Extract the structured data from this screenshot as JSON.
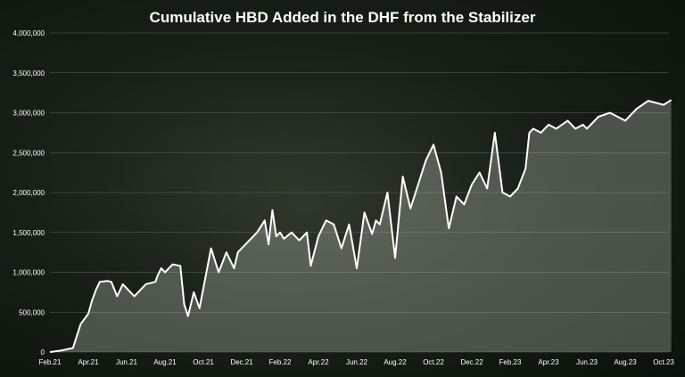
{
  "chart_data": {
    "type": "area",
    "title": "Cumulative HBD Added in the DHF from the Stabilizer",
    "xlabel": "",
    "ylabel": "",
    "ylim": [
      0,
      4000000
    ],
    "yticks": [
      0,
      500000,
      1000000,
      1500000,
      2000000,
      2500000,
      3000000,
      3500000,
      4000000
    ],
    "ytick_labels": [
      "0",
      "500,000",
      "1,000,000",
      "1,500,000",
      "2,000,000",
      "2,500,000",
      "3,000,000",
      "3,500,000",
      "4,000,000"
    ],
    "xtick_labels": [
      "Feb.21",
      "Apr.21",
      "Jun.21",
      "Aug.21",
      "Oct.21",
      "Dec.21",
      "Feb.22",
      "Apr.22",
      "Jun.22",
      "Aug.22",
      "Oct.22",
      "Dec.22",
      "Feb.23",
      "Apr.23",
      "Jun.23",
      "Aug.23",
      "Oct.23"
    ],
    "grid": true,
    "colors": {
      "line": "#ffffff",
      "fill": "#dfe6da",
      "grid": "#5c665a"
    },
    "series": [
      {
        "x": [
          0,
          0.3,
          0.6,
          0.8,
          1.0,
          1.1,
          1.2,
          1.3,
          1.5,
          1.6,
          1.75,
          1.9,
          2.2,
          2.5,
          2.75,
          2.8,
          2.9,
          3.0,
          3.2,
          3.4,
          3.5,
          3.6,
          3.75,
          3.9,
          4.0,
          4.2,
          4.4,
          4.6,
          4.8,
          4.9,
          5.0,
          5.2,
          5.4,
          5.6,
          5.7,
          5.8,
          5.9,
          6.0,
          6.1,
          6.3,
          6.5,
          6.7,
          6.8,
          7.0,
          7.2,
          7.4,
          7.6,
          7.8,
          8.0,
          8.2,
          8.4,
          8.5,
          8.6,
          8.8,
          9.0,
          9.2,
          9.4,
          9.5,
          9.6,
          9.8,
          10.0,
          10.2,
          10.4,
          10.6,
          10.8,
          11.0,
          11.2,
          11.4,
          11.6,
          11.8,
          12.0,
          12.2,
          12.4,
          12.5,
          12.6,
          12.8,
          13.0,
          13.2,
          13.35,
          13.5,
          13.7,
          13.9,
          14.0,
          14.3,
          14.6,
          15.0,
          15.3,
          15.6,
          16.0,
          16.2
        ],
        "values": [
          0,
          20000,
          50000,
          350000,
          480000,
          650000,
          780000,
          880000,
          890000,
          880000,
          700000,
          850000,
          700000,
          850000,
          880000,
          950000,
          1050000,
          1000000,
          1100000,
          1080000,
          600000,
          450000,
          750000,
          550000,
          800000,
          1300000,
          1000000,
          1250000,
          1050000,
          1250000,
          1300000,
          1400000,
          1500000,
          1650000,
          1350000,
          1780000,
          1450000,
          1500000,
          1420000,
          1500000,
          1400000,
          1500000,
          1080000,
          1450000,
          1650000,
          1600000,
          1300000,
          1600000,
          1050000,
          1750000,
          1480000,
          1650000,
          1600000,
          2000000,
          1180000,
          2200000,
          1800000,
          1950000,
          2100000,
          2400000,
          2600000,
          2250000,
          1550000,
          1950000,
          1850000,
          2100000,
          2250000,
          2050000,
          2750000,
          2000000,
          1950000,
          2050000,
          2300000,
          2750000,
          2800000,
          2750000,
          2850000,
          2800000,
          2850000,
          2900000,
          2800000,
          2850000,
          2800000,
          2950000,
          3000000,
          2900000,
          3050000,
          3150000,
          3100000,
          3160000
        ]
      }
    ]
  }
}
